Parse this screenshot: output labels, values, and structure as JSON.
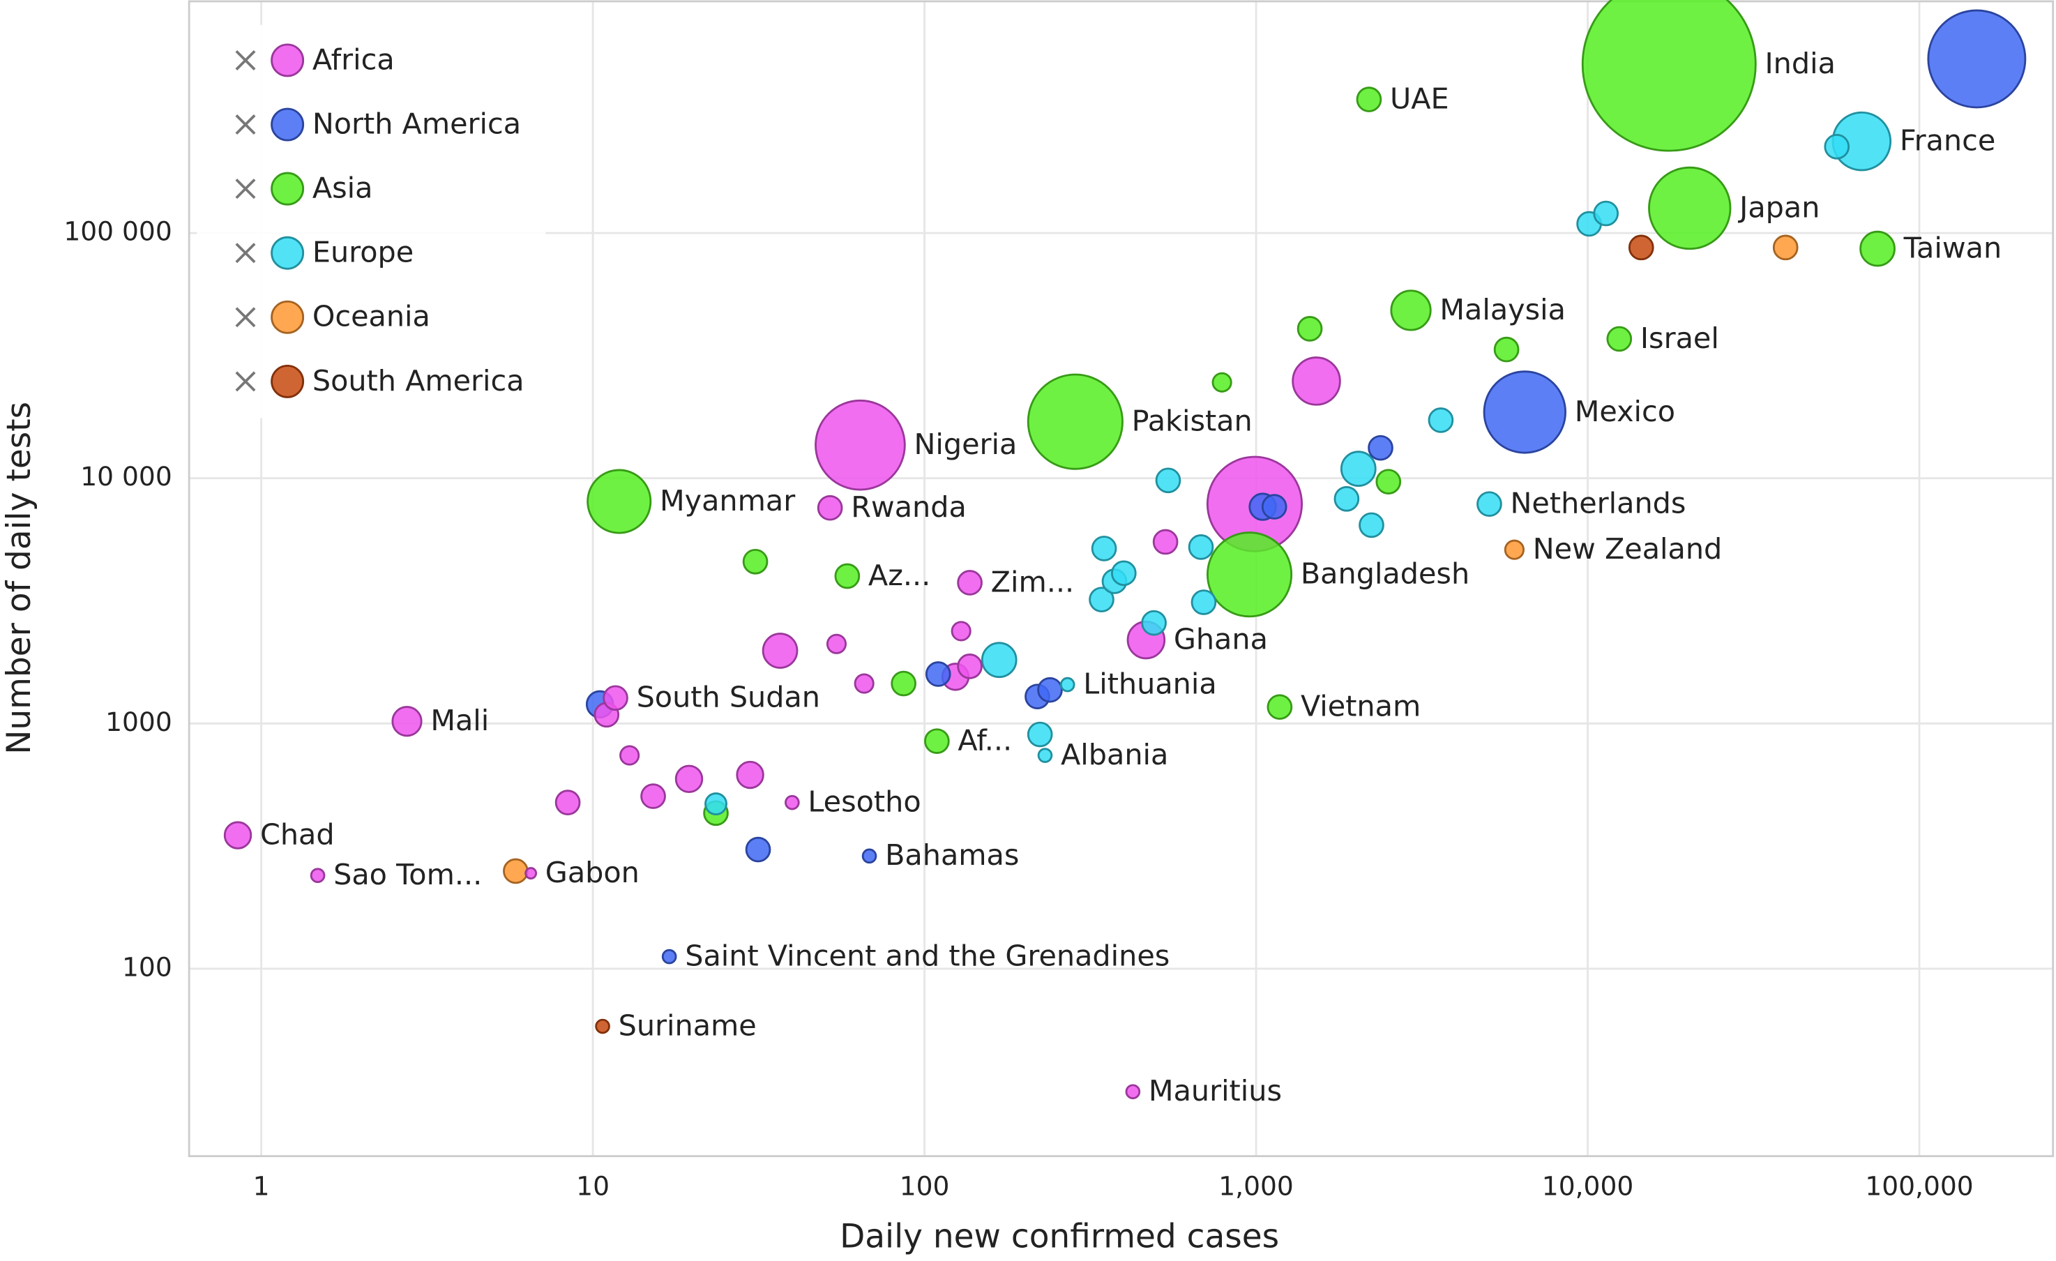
{
  "chart_data": {
    "type": "bubble",
    "x_label": "Daily new confirmed cases",
    "y_label": "Number of daily tests",
    "xlog": true,
    "ylog": true,
    "grid": true,
    "legend": "upper left",
    "xlim": [
      0.606,
      253000
    ],
    "ylim": [
      17.2,
      881000
    ],
    "xticks": [
      1,
      10,
      100,
      {
        "value": 1000,
        "label": "1,000"
      },
      {
        "value": 10000,
        "label": "10,000"
      },
      {
        "value": 100000,
        "label": "100,000"
      }
    ],
    "yticks": [
      100,
      1000,
      {
        "value": 10000,
        "label": "10 000"
      },
      {
        "value": 100000,
        "label": "100 000"
      }
    ],
    "series": [
      {
        "name": "Africa",
        "color": "#ee55ee",
        "x": [
          0.85,
          1.48,
          6.5,
          2.75,
          8.4,
          11,
          11.7,
          12.9,
          15.2,
          19.5,
          29.8,
          39.9,
          36.7,
          54.3,
          51.9,
          64,
          65.8,
          124,
          129,
          137,
          137,
          466,
          533,
          990,
          1520,
          425
        ],
        "values": [
          350,
          240,
          245,
          1020,
          476,
          1085,
          1270,
          741,
          505,
          594,
          617,
          476,
          1980,
          2110,
          7570,
          13650,
          1455,
          1550,
          2380,
          1710,
          3750,
          2190,
          5500,
          7850,
          24900,
          31.5
        ],
        "sizes": [
          100,
          25,
          16,
          121,
          81,
          81,
          81,
          49,
          81,
          100,
          100,
          25,
          169,
          49,
          81,
          1156,
          49,
          100,
          49,
          81,
          81,
          196,
          81,
          1296,
          324,
          25
        ],
        "labels": [
          "Chad",
          "Sao Tom...",
          "Gabon",
          "Mali",
          null,
          null,
          "South Sudan",
          null,
          null,
          null,
          null,
          "Lesotho",
          null,
          null,
          "Rwanda",
          "Nigeria",
          null,
          null,
          null,
          null,
          "Zim...",
          "Ghana",
          null,
          null,
          null,
          "Mauritius"
        ]
      },
      {
        "name": "North America",
        "color": "#4169f5",
        "x": [
          10.5,
          68.2,
          17,
          31.5,
          110,
          219,
          239,
          1047,
          1135,
          2373,
          6460,
          149000
        ],
        "values": [
          1197,
          288,
          112,
          306,
          1590,
          1288,
          1370,
          7650,
          7650,
          13300,
          18600,
          513000
        ],
        "sizes": [
          100,
          25,
          25,
          81,
          81,
          81,
          81,
          100,
          81,
          81,
          961,
          1369
        ],
        "labels": [
          null,
          "Bahamas",
          "Saint Vincent and the Grenadines",
          null,
          null,
          null,
          null,
          null,
          null,
          null,
          "Mexico",
          null
        ]
      },
      {
        "name": "Asia",
        "color": "#55ee22",
        "x": [
          23.5,
          30.9,
          12,
          58.5,
          86.5,
          109,
          285,
          789,
          955,
          1178,
          1452,
          2506,
          2190,
          2930,
          5690,
          12450,
          17600,
          20300,
          74800
        ],
        "values": [
          431,
          4570,
          8040,
          3990,
          1455,
          847,
          17000,
          24600,
          4050,
          1167,
          40700,
          9680,
          350600,
          48400,
          33500,
          37000,
          488000,
          126300,
          86300
        ],
        "sizes": [
          81,
          81,
          576,
          81,
          81,
          81,
          1296,
          49,
          1024,
          81,
          81,
          81,
          81,
          225,
          81,
          81,
          4356,
          961,
          169
        ],
        "labels": [
          null,
          null,
          "Myanmar",
          "Az...",
          null,
          "Af...",
          "Pakistan",
          null,
          "Bangladesh",
          "Vietnam",
          null,
          null,
          "UAE",
          "Malaysia",
          null,
          "Israel",
          "India",
          "Japan",
          "Taiwan"
        ]
      },
      {
        "name": "Europe",
        "color": "#33ddf5",
        "x": [
          23.5,
          168,
          270,
          231,
          223,
          348,
          342,
          374,
          399,
          492,
          543,
          682,
          695,
          1875,
          2035,
          2228,
          3606,
          5050,
          10100,
          11350,
          56400,
          67000
        ],
        "values": [
          470,
          1815,
          1440,
          741,
          902,
          5170,
          3200,
          3800,
          4100,
          2570,
          9800,
          5240,
          3120,
          8240,
          10930,
          6440,
          17250,
          7850,
          109000,
          120200,
          225000,
          236600
        ],
        "sizes": [
          64,
          169,
          25,
          25,
          81,
          81,
          81,
          81,
          81,
          81,
          81,
          81,
          81,
          81,
          169,
          81,
          81,
          81,
          81,
          81,
          81,
          484
        ],
        "labels": [
          null,
          null,
          "Lithuania",
          "Albania",
          null,
          null,
          null,
          null,
          null,
          null,
          null,
          null,
          null,
          null,
          null,
          null,
          null,
          "Netherlands",
          null,
          null,
          null,
          "France"
        ]
      },
      {
        "name": "Oceania",
        "color": "#ff9933",
        "x": [
          5.85,
          6010,
          39500
        ],
        "values": [
          250,
          5110,
          87300
        ],
        "sizes": [
          81,
          49,
          81
        ],
        "labels": [
          null,
          "New Zealand",
          null
        ]
      },
      {
        "name": "South America",
        "color": "#c84a10",
        "x": [
          10.7,
          14500
        ],
        "values": [
          58.2,
          87300
        ],
        "sizes": [
          25,
          81
        ],
        "labels": [
          "Suriname",
          null
        ]
      }
    ]
  }
}
